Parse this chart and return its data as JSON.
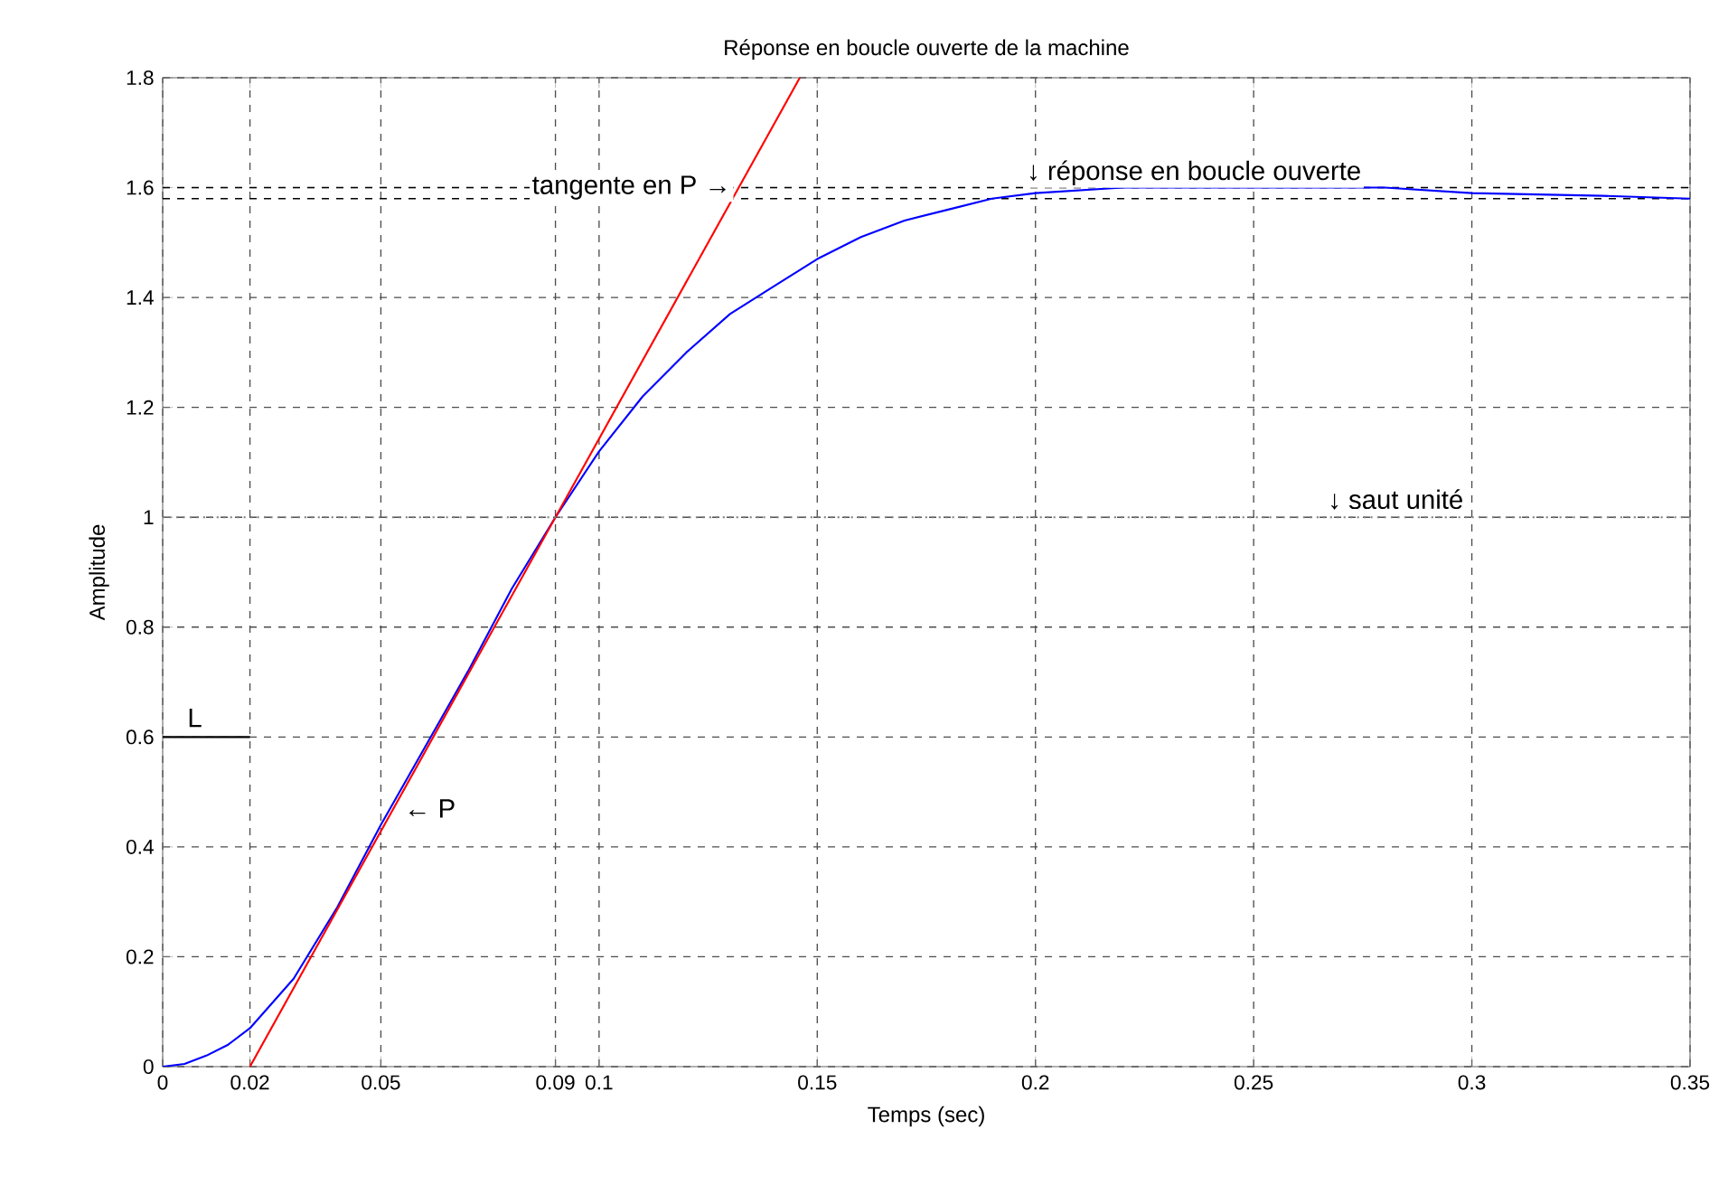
{
  "chart_data": {
    "type": "line",
    "title": "Réponse en boucle ouverte de la machine",
    "xlabel": "Temps (sec)",
    "ylabel": "Amplitude",
    "xlim": [
      0,
      0.35
    ],
    "ylim": [
      0,
      1.8
    ],
    "xticks": [
      0,
      0.02,
      0.05,
      0.09,
      0.1,
      0.15,
      0.2,
      0.25,
      0.3,
      0.35
    ],
    "yticks": [
      0,
      0.2,
      0.4,
      0.6,
      0.8,
      1,
      1.2,
      1.4,
      1.6,
      1.8
    ],
    "grid": true,
    "marker": "none",
    "series": [
      {
        "color": "#0000ff",
        "x": [
          0,
          0.005,
          0.01,
          0.015,
          0.02,
          0.03,
          0.04,
          0.05,
          0.06,
          0.07,
          0.08,
          0.09,
          0.1,
          0.11,
          0.12,
          0.13,
          0.14,
          0.15,
          0.16,
          0.17,
          0.18,
          0.19,
          0.2,
          0.22,
          0.25,
          0.28,
          0.3,
          0.33,
          0.35
        ],
        "values": [
          0,
          0.005,
          0.02,
          0.04,
          0.07,
          0.16,
          0.29,
          0.44,
          0.58,
          0.72,
          0.87,
          1.0,
          1.12,
          1.22,
          1.3,
          1.37,
          1.42,
          1.47,
          1.51,
          1.54,
          1.56,
          1.58,
          1.59,
          1.6,
          1.6,
          1.6,
          1.59,
          1.585,
          1.58
        ]
      },
      {
        "color": "#ff0000",
        "x": [
          0.02,
          0.146
        ],
        "values": [
          0,
          1.8
        ]
      },
      {
        "color": "#808080",
        "line_style": "dotted",
        "x": [
          0,
          0.35
        ],
        "values": [
          1,
          1
        ]
      },
      {
        "color": "#000000",
        "x": [
          0,
          0.02
        ],
        "values": [
          0.6,
          0.6
        ]
      }
    ],
    "ref_lines": [
      {
        "axis": "y",
        "value": 1.58,
        "color": "#000000",
        "line_style": "dashed"
      },
      {
        "axis": "y",
        "value": 1.6,
        "color": "#000000",
        "line_style": "dashed"
      }
    ],
    "annotations": [
      {
        "text": "L",
        "x": 0.005,
        "y": 0.6
      },
      {
        "text": "← P",
        "x": 0.053,
        "y": 0.47
      },
      {
        "text": "tangente en P →",
        "x": 0.132,
        "y": 1.6
      },
      {
        "text": "↓ réponse en boucle ouverte",
        "x": 0.199,
        "y": 1.59
      },
      {
        "text": "↓ saut unité",
        "x": 0.268,
        "y": 1
      }
    ]
  }
}
